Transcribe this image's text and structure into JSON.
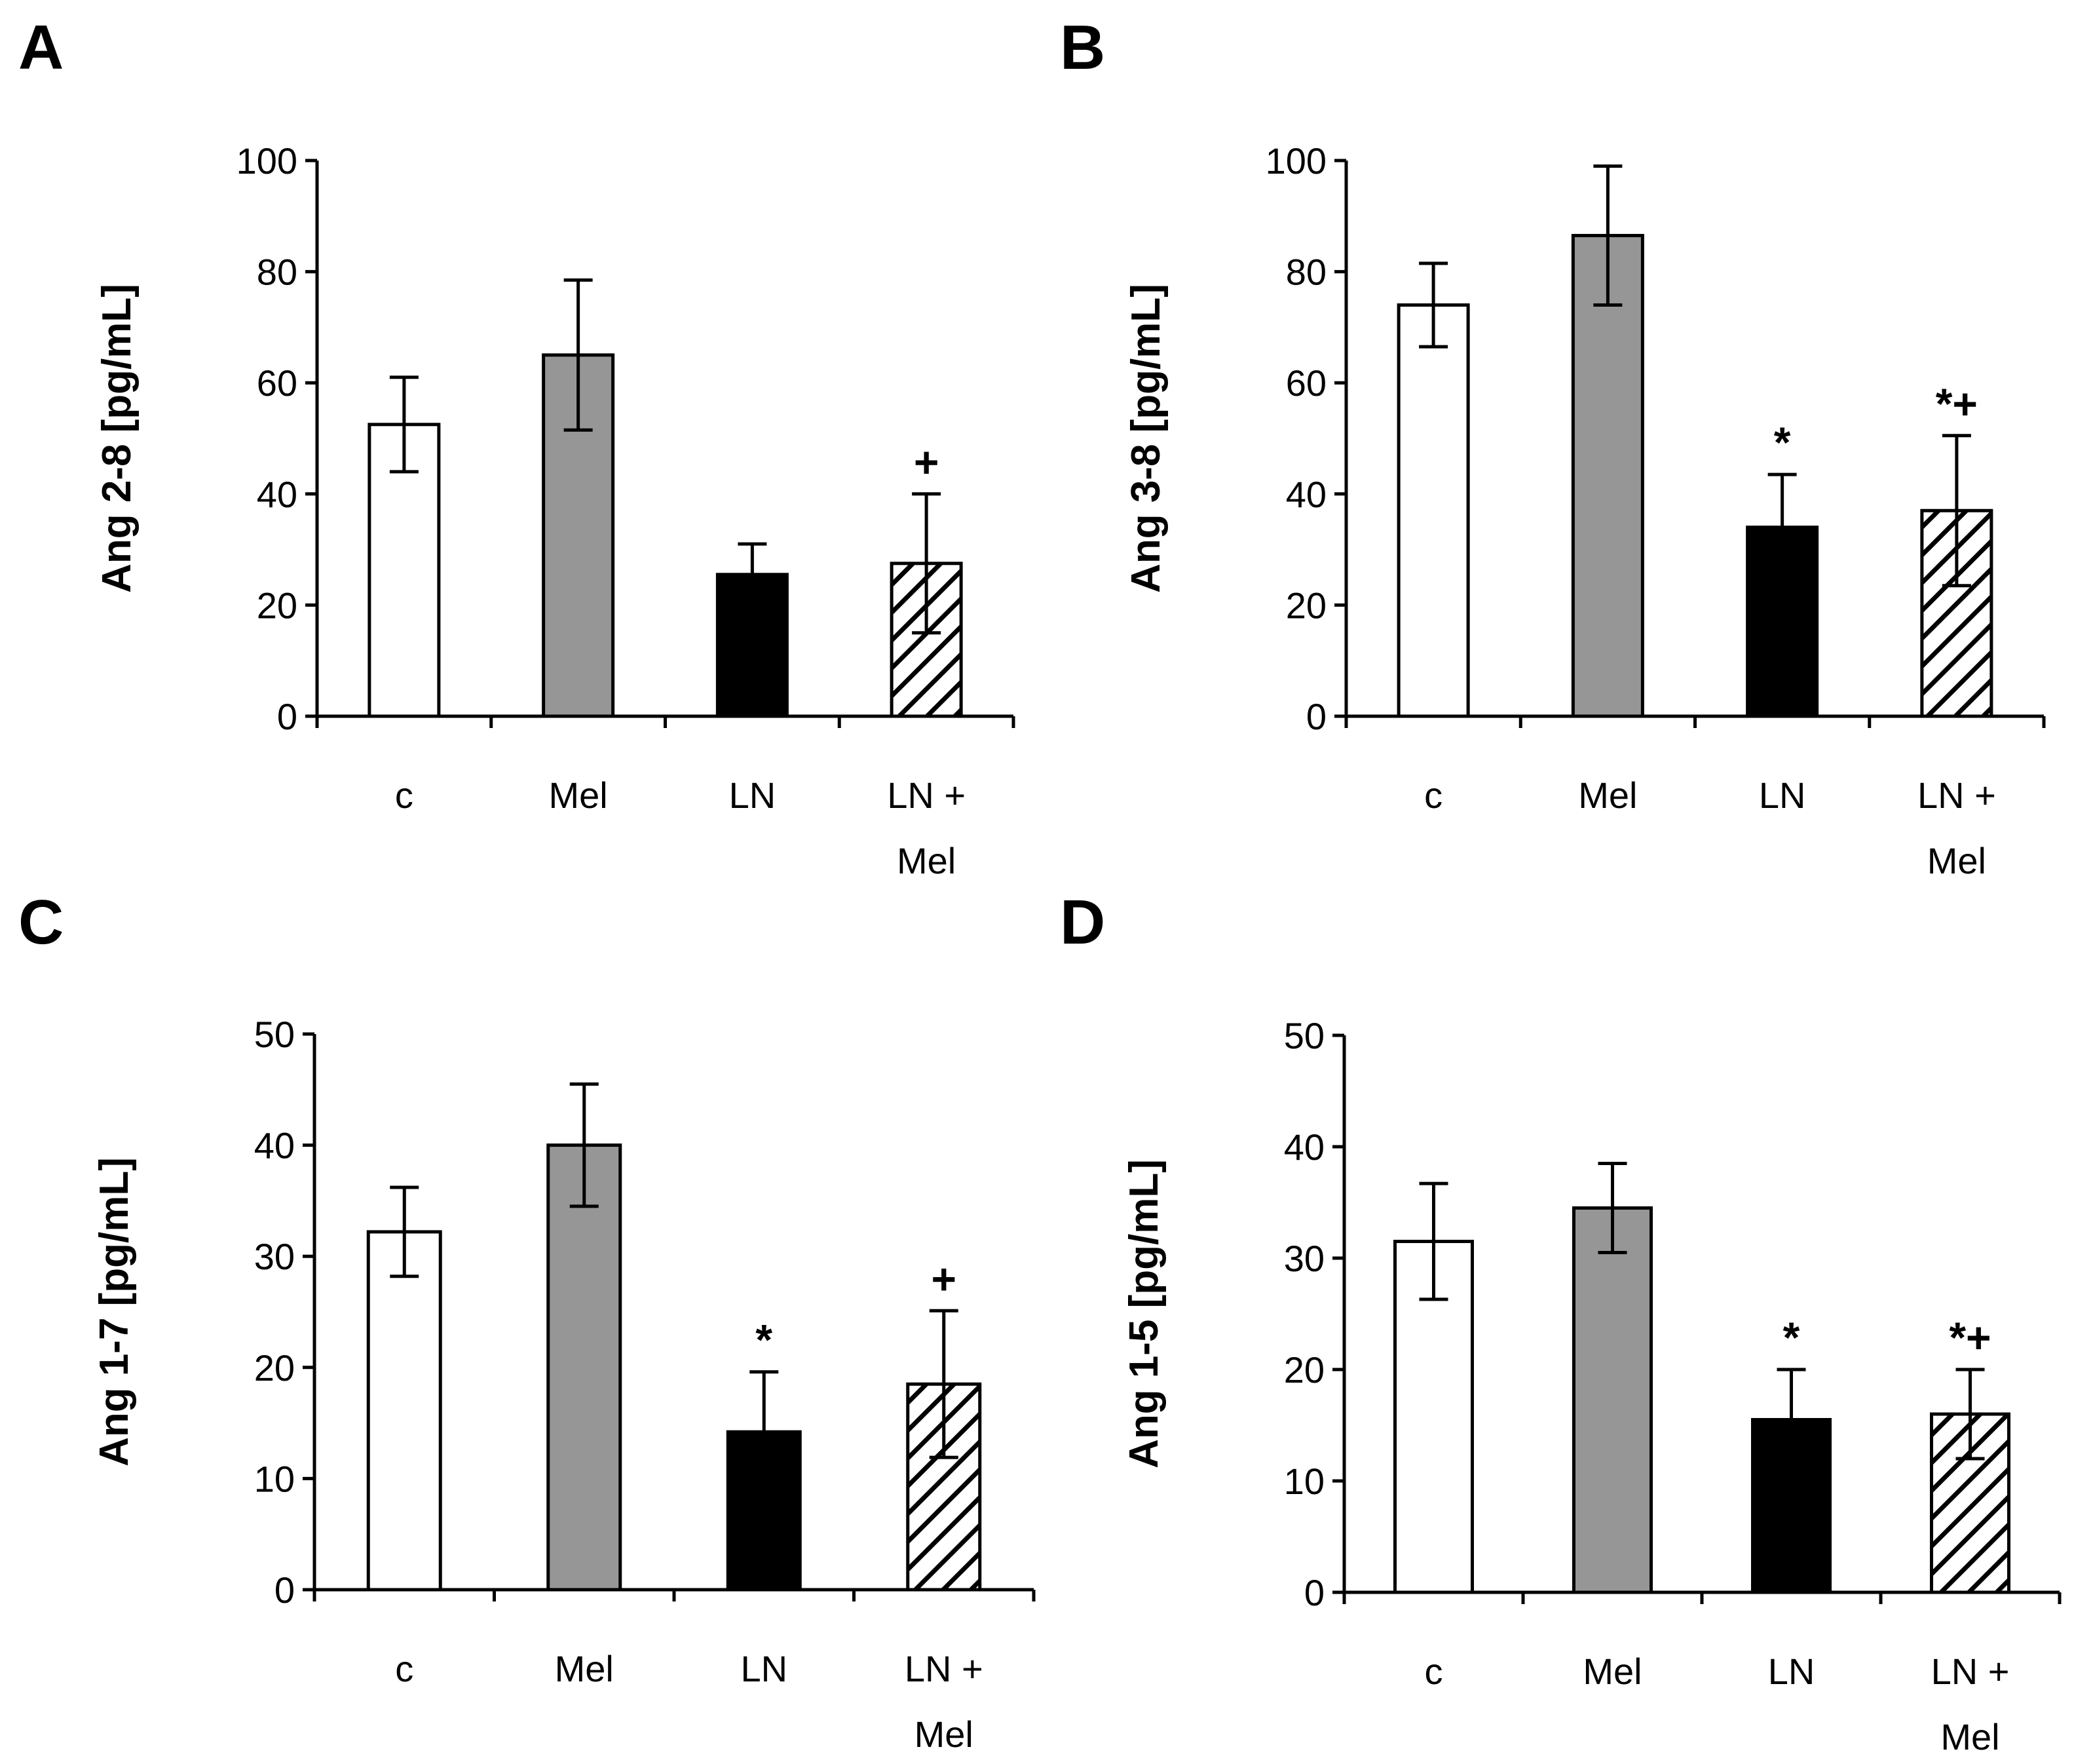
{
  "chart_data": [
    {
      "panel": "A",
      "type": "bar",
      "categories": [
        [
          "c"
        ],
        [
          "Mel"
        ],
        [
          "LN"
        ],
        [
          "LN +",
          "Mel"
        ]
      ],
      "values": [
        52.5,
        65,
        25.5,
        27.5
      ],
      "errors": [
        8.5,
        13.5,
        5.5,
        12.5
      ],
      "significance": [
        "",
        "",
        "",
        "+"
      ],
      "fills": [
        "white",
        "gray",
        "black",
        "hatch"
      ],
      "ylabel": "Ang 2-8 [pg/mL]",
      "ylim": [
        0,
        100
      ],
      "yticks": [
        0,
        20,
        40,
        60,
        80,
        100
      ]
    },
    {
      "panel": "B",
      "type": "bar",
      "categories": [
        [
          "c"
        ],
        [
          "Mel"
        ],
        [
          "LN"
        ],
        [
          "LN +",
          "Mel"
        ]
      ],
      "values": [
        74,
        86.5,
        34,
        37
      ],
      "errors": [
        7.5,
        12.5,
        9.5,
        13.5
      ],
      "significance": [
        "",
        "",
        "*",
        "*+"
      ],
      "fills": [
        "white",
        "gray",
        "black",
        "hatch"
      ],
      "ylabel": "Ang 3-8 [pg/mL]",
      "ylim": [
        0,
        100
      ],
      "yticks": [
        0,
        20,
        40,
        60,
        80,
        100
      ]
    },
    {
      "panel": "C",
      "type": "bar",
      "categories": [
        [
          "c"
        ],
        [
          "Mel"
        ],
        [
          "LN"
        ],
        [
          "LN +",
          "Mel"
        ]
      ],
      "values": [
        32.2,
        40,
        14.2,
        18.5
      ],
      "errors": [
        4,
        5.5,
        5.4,
        6.6
      ],
      "significance": [
        "",
        "",
        "*",
        "+"
      ],
      "fills": [
        "white",
        "gray",
        "black",
        "hatch"
      ],
      "ylabel": "Ang 1-7 [pg/mL]",
      "ylim": [
        0,
        50
      ],
      "yticks": [
        0,
        10,
        20,
        30,
        40,
        50
      ]
    },
    {
      "panel": "D",
      "type": "bar",
      "categories": [
        [
          "c"
        ],
        [
          "Mel"
        ],
        [
          "LN"
        ],
        [
          "LN +",
          "Mel"
        ]
      ],
      "values": [
        31.5,
        34.5,
        15.5,
        16
      ],
      "errors": [
        5.2,
        4,
        4.5,
        4
      ],
      "significance": [
        "",
        "",
        "*",
        "*+"
      ],
      "fills": [
        "white",
        "gray",
        "black",
        "hatch"
      ],
      "ylabel": "Ang 1-5 [pg/mL]",
      "ylim": [
        0,
        50
      ],
      "yticks": [
        0,
        10,
        20,
        30,
        40,
        50
      ]
    }
  ],
  "colors": {
    "white": "#ffffff",
    "gray": "#969696",
    "black": "#000000",
    "hatch": "#000000"
  }
}
